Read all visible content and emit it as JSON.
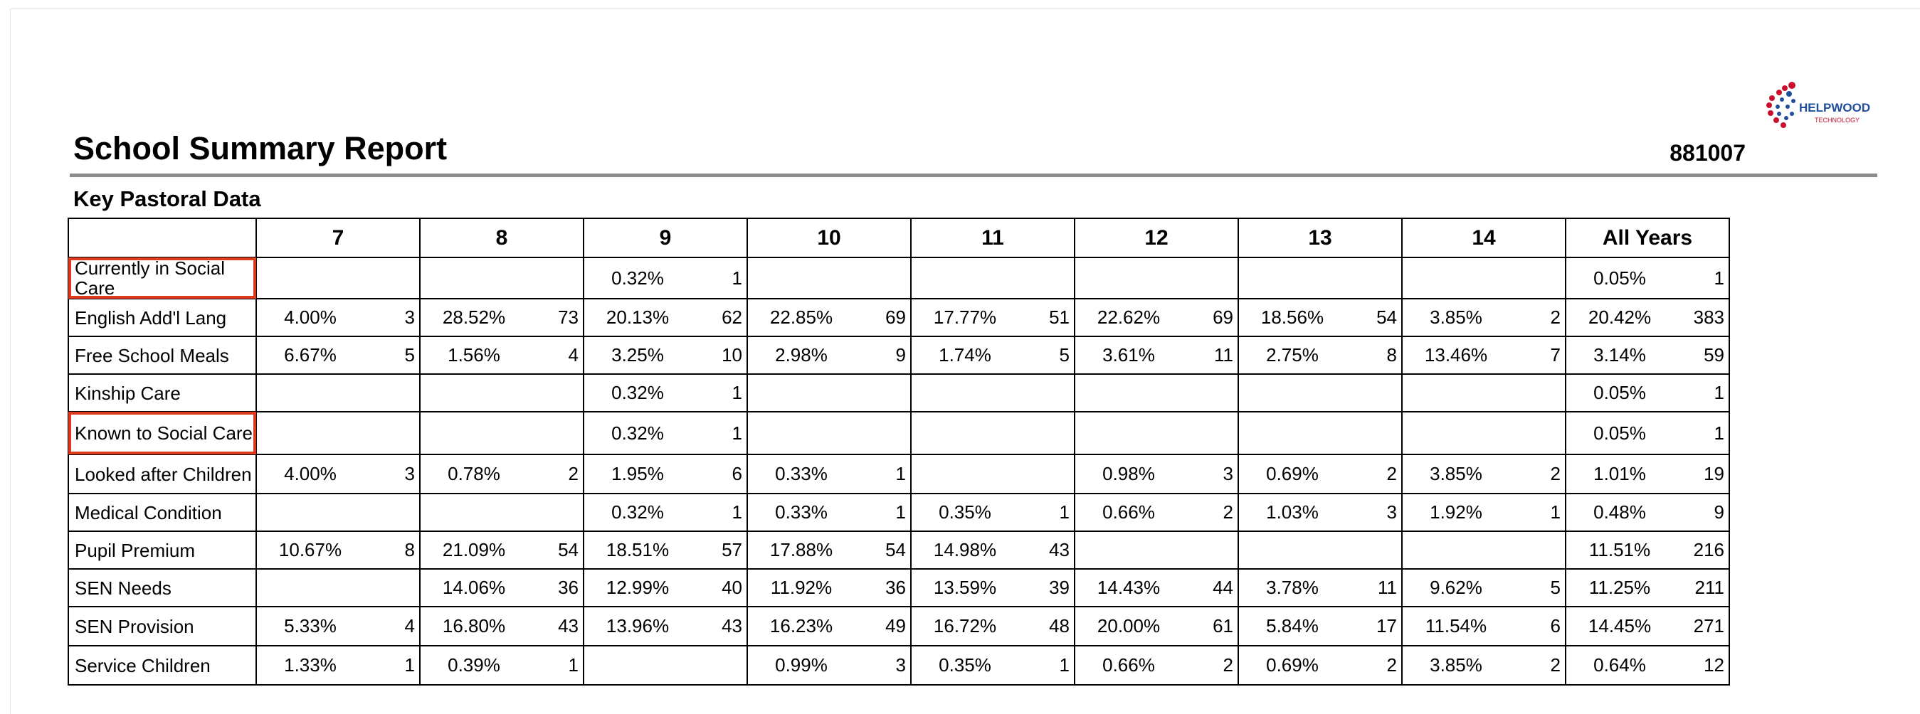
{
  "logo": {
    "name": "HELPWOOD",
    "tagline": "TECHNOLOGY"
  },
  "header": {
    "title": "School Summary Report",
    "id": "881007"
  },
  "section": {
    "title": "Key Pastoral Data"
  },
  "table": {
    "columns": [
      "7",
      "8",
      "9",
      "10",
      "11",
      "12",
      "13",
      "14",
      "All Years"
    ],
    "rows": [
      {
        "label": "Currently in Social Care",
        "highlight": true,
        "cells": [
          null,
          null,
          [
            "0.32%",
            1
          ],
          null,
          null,
          null,
          null,
          null,
          [
            "0.05%",
            1
          ]
        ]
      },
      {
        "label": "English Add'l Lang",
        "cells": [
          [
            "4.00%",
            3
          ],
          [
            "28.52%",
            73
          ],
          [
            "20.13%",
            62
          ],
          [
            "22.85%",
            69
          ],
          [
            "17.77%",
            51
          ],
          [
            "22.62%",
            69
          ],
          [
            "18.56%",
            54
          ],
          [
            "3.85%",
            2
          ],
          [
            "20.42%",
            383
          ]
        ]
      },
      {
        "label": "Free School Meals",
        "cells": [
          [
            "6.67%",
            5
          ],
          [
            "1.56%",
            4
          ],
          [
            "3.25%",
            10
          ],
          [
            "2.98%",
            9
          ],
          [
            "1.74%",
            5
          ],
          [
            "3.61%",
            11
          ],
          [
            "2.75%",
            8
          ],
          [
            "13.46%",
            7
          ],
          [
            "3.14%",
            59
          ]
        ]
      },
      {
        "label": "Kinship Care",
        "cells": [
          null,
          null,
          [
            "0.32%",
            1
          ],
          null,
          null,
          null,
          null,
          null,
          [
            "0.05%",
            1
          ]
        ]
      },
      {
        "label": "Known to Social Care",
        "highlight": true,
        "cells": [
          null,
          null,
          [
            "0.32%",
            1
          ],
          null,
          null,
          null,
          null,
          null,
          [
            "0.05%",
            1
          ]
        ]
      },
      {
        "label": "Looked after Children",
        "cells": [
          [
            "4.00%",
            3
          ],
          [
            "0.78%",
            2
          ],
          [
            "1.95%",
            6
          ],
          [
            "0.33%",
            1
          ],
          null,
          [
            "0.98%",
            3
          ],
          [
            "0.69%",
            2
          ],
          [
            "3.85%",
            2
          ],
          [
            "1.01%",
            19
          ]
        ]
      },
      {
        "label": "Medical Condition",
        "cells": [
          null,
          null,
          [
            "0.32%",
            1
          ],
          [
            "0.33%",
            1
          ],
          [
            "0.35%",
            1
          ],
          [
            "0.66%",
            2
          ],
          [
            "1.03%",
            3
          ],
          [
            "1.92%",
            1
          ],
          [
            "0.48%",
            9
          ]
        ]
      },
      {
        "label": "Pupil Premium",
        "cells": [
          [
            "10.67%",
            8
          ],
          [
            "21.09%",
            54
          ],
          [
            "18.51%",
            57
          ],
          [
            "17.88%",
            54
          ],
          [
            "14.98%",
            43
          ],
          null,
          null,
          null,
          [
            "11.51%",
            216
          ]
        ]
      },
      {
        "label": "SEN Needs",
        "cells": [
          null,
          [
            "14.06%",
            36
          ],
          [
            "12.99%",
            40
          ],
          [
            "11.92%",
            36
          ],
          [
            "13.59%",
            39
          ],
          [
            "14.43%",
            44
          ],
          [
            "3.78%",
            11
          ],
          [
            "9.62%",
            5
          ],
          [
            "11.25%",
            211
          ]
        ]
      },
      {
        "label": "SEN Provision",
        "cells": [
          [
            "5.33%",
            4
          ],
          [
            "16.80%",
            43
          ],
          [
            "13.96%",
            43
          ],
          [
            "16.23%",
            49
          ],
          [
            "16.72%",
            48
          ],
          [
            "20.00%",
            61
          ],
          [
            "5.84%",
            17
          ],
          [
            "11.54%",
            6
          ],
          [
            "14.45%",
            271
          ]
        ]
      },
      {
        "label": "Service Children",
        "cells": [
          [
            "1.33%",
            1
          ],
          [
            "0.39%",
            1
          ],
          null,
          [
            "0.99%",
            3
          ],
          [
            "0.35%",
            1
          ],
          [
            "0.66%",
            2
          ],
          [
            "0.69%",
            2
          ],
          [
            "3.85%",
            2
          ],
          [
            "0.64%",
            12
          ]
        ]
      }
    ]
  }
}
